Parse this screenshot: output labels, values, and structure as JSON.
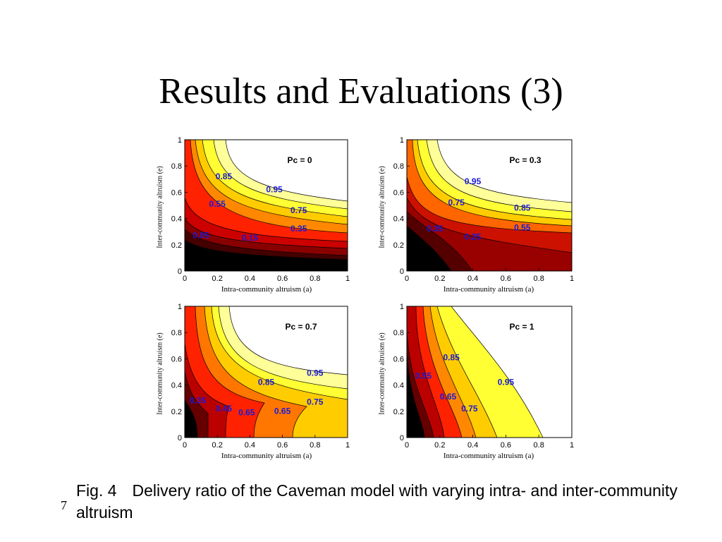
{
  "slide": {
    "title": "Results and Evaluations (3)",
    "caption_prefix": "Fig. 4",
    "caption_text": "Delivery ratio of the Caveman model with varying intra- and inter-community altruism",
    "page_number": "7"
  },
  "chart_data": [
    {
      "type": "contour",
      "title": "Pc = 0",
      "xlabel": "Intra-community altruism (a)",
      "ylabel": "Inter-community altruism (e)",
      "xlim": [
        0,
        1
      ],
      "ylim": [
        0,
        1
      ],
      "x_ticks": [
        "0",
        "0.2",
        "0.4",
        "0.6",
        "0.8",
        "1"
      ],
      "y_ticks": [
        "0",
        "0.2",
        "0.4",
        "0.6",
        "0.8",
        "1"
      ],
      "contour_labels": [
        {
          "text": "0.85",
          "x": 0.24,
          "y": 0.7
        },
        {
          "text": "0.95",
          "x": 0.55,
          "y": 0.6
        },
        {
          "text": "0.55",
          "x": 0.2,
          "y": 0.49
        },
        {
          "text": "0.75",
          "x": 0.7,
          "y": 0.44
        },
        {
          "text": "0.35",
          "x": 0.7,
          "y": 0.3
        },
        {
          "text": "0.05",
          "x": 0.1,
          "y": 0.25
        },
        {
          "text": "0.15",
          "x": 0.4,
          "y": 0.23
        }
      ]
    },
    {
      "type": "contour",
      "title": "Pc = 0.3",
      "xlabel": "Intra-community altruism (a)",
      "ylabel": "Inter-community altruism (e)",
      "xlim": [
        0,
        1
      ],
      "ylim": [
        0,
        1
      ],
      "x_ticks": [
        "0",
        "0.2",
        "0.4",
        "0.6",
        "0.8",
        "1"
      ],
      "y_ticks": [
        "0",
        "0.2",
        "0.4",
        "0.6",
        "0.8",
        "1"
      ],
      "contour_labels": [
        {
          "text": "0.95",
          "x": 0.4,
          "y": 0.66
        },
        {
          "text": "0.75",
          "x": 0.3,
          "y": 0.5
        },
        {
          "text": "0.85",
          "x": 0.7,
          "y": 0.46
        },
        {
          "text": "0.35",
          "x": 0.17,
          "y": 0.3
        },
        {
          "text": "0.55",
          "x": 0.7,
          "y": 0.31
        },
        {
          "text": "0.25",
          "x": 0.4,
          "y": 0.24
        }
      ]
    },
    {
      "type": "contour",
      "title": "Pc = 0.7",
      "xlabel": "Intra-community altruism (a)",
      "ylabel": "Inter-community altruism (e)",
      "xlim": [
        0,
        1
      ],
      "ylim": [
        0,
        1
      ],
      "x_ticks": [
        "0",
        "0.2",
        "0.4",
        "0.6",
        "0.8",
        "1"
      ],
      "y_ticks": [
        "0",
        "0.2",
        "0.4",
        "0.6",
        "0.8",
        "1"
      ],
      "contour_labels": [
        {
          "text": "0.95",
          "x": 0.8,
          "y": 0.47
        },
        {
          "text": "0.85",
          "x": 0.5,
          "y": 0.4
        },
        {
          "text": "0.75",
          "x": 0.8,
          "y": 0.25
        },
        {
          "text": "0.35",
          "x": 0.08,
          "y": 0.26
        },
        {
          "text": "0.45",
          "x": 0.24,
          "y": 0.2
        },
        {
          "text": "0.65",
          "x": 0.38,
          "y": 0.17
        },
        {
          "text": "0.65",
          "x": 0.6,
          "y": 0.18
        }
      ]
    },
    {
      "type": "contour",
      "title": "Pc = 1",
      "xlabel": "Intra-community altruism (a)",
      "ylabel": "Inter-community altruism (e)",
      "xlim": [
        0,
        1
      ],
      "ylim": [
        0,
        1
      ],
      "x_ticks": [
        "0",
        "0.2",
        "0.4",
        "0.6",
        "0.8",
        "1"
      ],
      "y_ticks": [
        "0",
        "0.2",
        "0.4",
        "0.6",
        "0.8",
        "1"
      ],
      "contour_labels": [
        {
          "text": "0.85",
          "x": 0.27,
          "y": 0.59
        },
        {
          "text": "0.95",
          "x": 0.6,
          "y": 0.4
        },
        {
          "text": "0.55",
          "x": 0.1,
          "y": 0.45
        },
        {
          "text": "0.65",
          "x": 0.25,
          "y": 0.29
        },
        {
          "text": "0.75",
          "x": 0.38,
          "y": 0.2
        }
      ]
    }
  ]
}
